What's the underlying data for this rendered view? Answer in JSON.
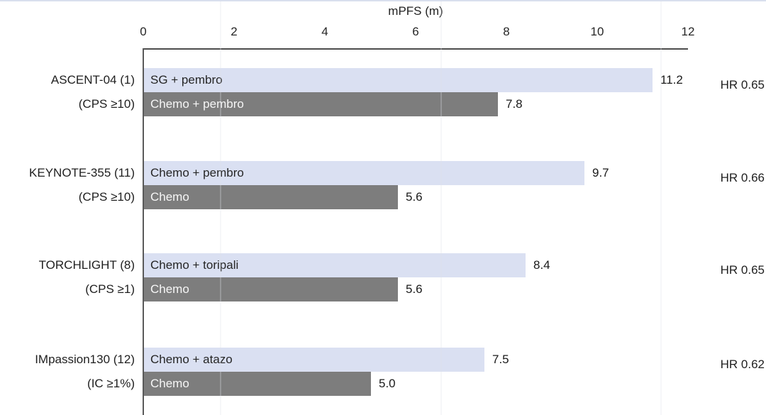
{
  "chart_data": {
    "type": "bar",
    "orientation": "horizontal",
    "title": "mPFS (m)",
    "xlabel": "mPFS (m)",
    "ylabel": "",
    "axis": {
      "min": 0,
      "max": 12,
      "ticks": [
        0,
        2,
        4,
        6,
        8,
        10,
        12
      ]
    },
    "grid": false,
    "colors": {
      "experimental_bar": "#dae0f2",
      "control_bar": "#7d7d7d",
      "axis_line": "#4d4d4d"
    },
    "groups": [
      {
        "trial": "ASCENT-04 (1)",
        "subgroup": "(CPS ≥10)",
        "hr": "HR 0.65",
        "bars": [
          {
            "label": "SG + pembro",
            "value": 11.2,
            "display": "11.2",
            "type": "experimental"
          },
          {
            "label": "Chemo + pembro",
            "value": 7.8,
            "display": "7.8",
            "type": "control"
          }
        ]
      },
      {
        "trial": "KEYNOTE-355 (11)",
        "subgroup": "(CPS ≥10)",
        "hr": "HR 0.66",
        "bars": [
          {
            "label": "Chemo + pembro",
            "value": 9.7,
            "display": "9.7",
            "type": "experimental"
          },
          {
            "label": "Chemo",
            "value": 5.6,
            "display": "5.6",
            "type": "control"
          }
        ]
      },
      {
        "trial": "TORCHLIGHT (8)",
        "subgroup": "(CPS ≥1)",
        "hr": "HR 0.65",
        "bars": [
          {
            "label": "Chemo + toripali",
            "value": 8.4,
            "display": "8.4",
            "type": "experimental"
          },
          {
            "label": "Chemo",
            "value": 5.6,
            "display": "5.6",
            "type": "control"
          }
        ]
      },
      {
        "trial": "IMpassion130 (12)",
        "subgroup": "(IC ≥1%)",
        "hr": "HR 0.62",
        "bars": [
          {
            "label": "Chemo + atazo",
            "value": 7.5,
            "display": "7.5",
            "type": "experimental"
          },
          {
            "label": "Chemo",
            "value": 5.0,
            "display": "5.0",
            "type": "control"
          }
        ]
      }
    ]
  }
}
